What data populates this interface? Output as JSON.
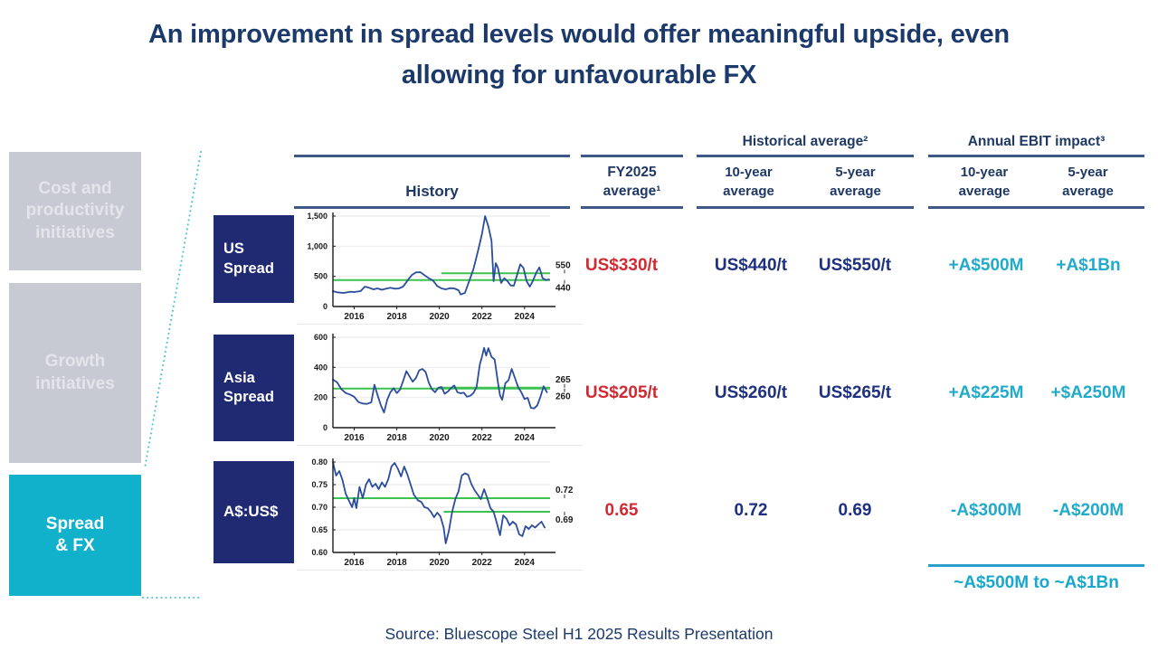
{
  "title_lines": [
    "An improvement in spread levels would offer meaningful upside, even",
    "allowing for unfavourable FX"
  ],
  "sidebar": {
    "items": [
      {
        "label_lines": [
          "Cost and",
          "productivity",
          "initiatives"
        ],
        "active": false
      },
      {
        "label_lines": [
          "Growth",
          "initiatives"
        ],
        "active": false
      },
      {
        "label_lines": [
          "Spread",
          "& FX"
        ],
        "active": true
      }
    ]
  },
  "table": {
    "history_label": "History",
    "fy2025_lines": [
      "FY2025",
      "average¹"
    ],
    "groups": [
      {
        "label": "Historical average²",
        "sub": [
          [
            "10-year",
            "average"
          ],
          [
            "5-year",
            "average"
          ]
        ]
      },
      {
        "label": "Annual EBIT impact³",
        "sub": [
          [
            "10-year",
            "average"
          ],
          [
            "5-year",
            "average"
          ]
        ]
      }
    ],
    "rows": [
      {
        "label_lines": [
          "US",
          "Spread"
        ],
        "fy2025": "US$330/t",
        "y10": "US$440/t",
        "y5": "US$550/t",
        "ebit10": "+A$500M",
        "ebit5": "+A$1Bn"
      },
      {
        "label_lines": [
          "Asia",
          "Spread"
        ],
        "fy2025": "US$205/t",
        "y10": "US$260/t",
        "y5": "US$265/t",
        "ebit10": "+A$225M",
        "ebit5": "+$A250M"
      },
      {
        "label_lines": [
          "A$:US$"
        ],
        "fy2025": "0.65",
        "y10": "0.72",
        "y5": "0.69",
        "ebit10": "-A$300M",
        "ebit5": "-A$200M"
      }
    ],
    "summary": "~A$500M to ~A$1Bn"
  },
  "source": "Source: Bluescope Steel H1 2025 Results Presentation",
  "colors": {
    "title_navy": "#1b3a6b",
    "header_navy": "#1f3864",
    "rule_steel_blue": "#3d5a86",
    "row_label_navy": "#1f2a72",
    "value_navy": "#1e3181",
    "value_red": "#d02a33",
    "value_teal": "#22aacb",
    "summary_teal": "#18a7cd",
    "summary_rule_teal": "#2b9fc9",
    "sidebar_gray": "#c7cad3",
    "sidebar_gray_text": "#e3e5ea",
    "sidebar_teal": "#12b1cb",
    "dotted_connector": "#45c2d8",
    "chart_line": "#2a4d9e",
    "chart_avg_green": "#3cc24e",
    "chart_grid": "#ebebee",
    "chart_axis": "#1a1a1a"
  },
  "chart_data": [
    {
      "type": "line",
      "name": "US Spread history (US$/t)",
      "xlim": [
        2015,
        2025.2
      ],
      "ylim": [
        0,
        1500
      ],
      "yticks": [
        0,
        500,
        1000,
        1500
      ],
      "ytick_labels": [
        "0",
        "500",
        "1,000",
        "1,500"
      ],
      "xticks": [
        2016,
        2018,
        2020,
        2022,
        2024
      ],
      "series": [
        {
          "name": "US spread",
          "points": [
            [
              2015.0,
              255
            ],
            [
              2015.2,
              235
            ],
            [
              2015.5,
              225
            ],
            [
              2015.8,
              245
            ],
            [
              2016.0,
              240
            ],
            [
              2016.3,
              255
            ],
            [
              2016.5,
              330
            ],
            [
              2016.7,
              310
            ],
            [
              2016.9,
              285
            ],
            [
              2017.1,
              300
            ],
            [
              2017.3,
              278
            ],
            [
              2017.5,
              295
            ],
            [
              2017.7,
              310
            ],
            [
              2017.9,
              295
            ],
            [
              2018.1,
              300
            ],
            [
              2018.3,
              330
            ],
            [
              2018.5,
              430
            ],
            [
              2018.7,
              520
            ],
            [
              2018.9,
              565
            ],
            [
              2019.1,
              570
            ],
            [
              2019.3,
              520
            ],
            [
              2019.5,
              470
            ],
            [
              2019.7,
              430
            ],
            [
              2019.9,
              340
            ],
            [
              2020.1,
              300
            ],
            [
              2020.3,
              285
            ],
            [
              2020.5,
              305
            ],
            [
              2020.7,
              300
            ],
            [
              2020.9,
              270
            ],
            [
              2021.0,
              200
            ],
            [
              2021.2,
              225
            ],
            [
              2021.4,
              420
            ],
            [
              2021.6,
              620
            ],
            [
              2021.8,
              900
            ],
            [
              2022.0,
              1200
            ],
            [
              2022.15,
              1500
            ],
            [
              2022.3,
              1330
            ],
            [
              2022.45,
              1090
            ],
            [
              2022.55,
              420
            ],
            [
              2022.65,
              720
            ],
            [
              2022.75,
              640
            ],
            [
              2022.9,
              390
            ],
            [
              2023.05,
              470
            ],
            [
              2023.2,
              420
            ],
            [
              2023.35,
              350
            ],
            [
              2023.5,
              345
            ],
            [
              2023.65,
              520
            ],
            [
              2023.8,
              700
            ],
            [
              2023.95,
              640
            ],
            [
              2024.1,
              420
            ],
            [
              2024.25,
              330
            ],
            [
              2024.4,
              430
            ],
            [
              2024.55,
              560
            ],
            [
              2024.7,
              650
            ],
            [
              2024.85,
              470
            ],
            [
              2025.0,
              440
            ],
            [
              2025.15,
              450
            ]
          ]
        }
      ],
      "avg_lines": [
        {
          "value": 440,
          "from": 2015,
          "to": 2025.2
        },
        {
          "value": 550,
          "from": 2020.1,
          "to": 2025.2
        }
      ],
      "annotations": [
        {
          "value": 550,
          "label": "550",
          "side": "above"
        },
        {
          "value": 440,
          "label": "440",
          "side": "below"
        }
      ]
    },
    {
      "type": "line",
      "name": "Asia Spread history (US$/t)",
      "xlim": [
        2015,
        2025.2
      ],
      "ylim": [
        0,
        600
      ],
      "yticks": [
        0,
        200,
        400,
        600
      ],
      "ytick_labels": [
        "0",
        "200",
        "400",
        "600"
      ],
      "xticks": [
        2016,
        2018,
        2020,
        2022,
        2024
      ],
      "series": [
        {
          "name": "Asia spread",
          "points": [
            [
              2015.0,
              320
            ],
            [
              2015.2,
              300
            ],
            [
              2015.4,
              255
            ],
            [
              2015.6,
              230
            ],
            [
              2015.8,
              220
            ],
            [
              2016.0,
              205
            ],
            [
              2016.2,
              170
            ],
            [
              2016.4,
              160
            ],
            [
              2016.6,
              158
            ],
            [
              2016.8,
              168
            ],
            [
              2016.95,
              285
            ],
            [
              2017.1,
              215
            ],
            [
              2017.25,
              150
            ],
            [
              2017.4,
              100
            ],
            [
              2017.55,
              185
            ],
            [
              2017.7,
              235
            ],
            [
              2017.85,
              262
            ],
            [
              2018.0,
              230
            ],
            [
              2018.15,
              252
            ],
            [
              2018.3,
              310
            ],
            [
              2018.45,
              375
            ],
            [
              2018.6,
              340
            ],
            [
              2018.75,
              305
            ],
            [
              2018.9,
              330
            ],
            [
              2019.05,
              380
            ],
            [
              2019.2,
              390
            ],
            [
              2019.35,
              370
            ],
            [
              2019.5,
              300
            ],
            [
              2019.65,
              255
            ],
            [
              2019.8,
              235
            ],
            [
              2019.95,
              265
            ],
            [
              2020.1,
              270
            ],
            [
              2020.25,
              225
            ],
            [
              2020.4,
              240
            ],
            [
              2020.55,
              262
            ],
            [
              2020.7,
              280
            ],
            [
              2020.85,
              235
            ],
            [
              2021.0,
              228
            ],
            [
              2021.15,
              232
            ],
            [
              2021.3,
              205
            ],
            [
              2021.45,
              212
            ],
            [
              2021.6,
              230
            ],
            [
              2021.75,
              270
            ],
            [
              2021.9,
              420
            ],
            [
              2022.0,
              470
            ],
            [
              2022.1,
              530
            ],
            [
              2022.2,
              478
            ],
            [
              2022.3,
              528
            ],
            [
              2022.45,
              470
            ],
            [
              2022.6,
              452
            ],
            [
              2022.75,
              300
            ],
            [
              2022.85,
              215
            ],
            [
              2022.95,
              185
            ],
            [
              2023.1,
              295
            ],
            [
              2023.25,
              315
            ],
            [
              2023.4,
              390
            ],
            [
              2023.55,
              330
            ],
            [
              2023.7,
              270
            ],
            [
              2023.85,
              235
            ],
            [
              2024.0,
              190
            ],
            [
              2024.15,
              198
            ],
            [
              2024.3,
              132
            ],
            [
              2024.45,
              128
            ],
            [
              2024.6,
              148
            ],
            [
              2024.75,
              205
            ],
            [
              2024.9,
              275
            ],
            [
              2025.05,
              235
            ]
          ]
        }
      ],
      "avg_lines": [
        {
          "value": 260,
          "from": 2015,
          "to": 2025.2
        },
        {
          "value": 265,
          "from": 2020.1,
          "to": 2025.2
        }
      ],
      "annotations": [
        {
          "value": 265,
          "label": "265",
          "side": "above"
        },
        {
          "value": 260,
          "label": "260",
          "side": "below"
        }
      ]
    },
    {
      "type": "line",
      "name": "A$:US$ history",
      "xlim": [
        2015,
        2025.2
      ],
      "ylim": [
        0.6,
        0.8
      ],
      "yticks": [
        0.6,
        0.65,
        0.7,
        0.75,
        0.8
      ],
      "ytick_labels": [
        "0.60",
        "0.65",
        "0.70",
        "0.75",
        "0.80"
      ],
      "xticks": [
        2016,
        2018,
        2020,
        2022,
        2024
      ],
      "series": [
        {
          "name": "A$:US$",
          "points": [
            [
              2015.0,
              0.8
            ],
            [
              2015.15,
              0.77
            ],
            [
              2015.3,
              0.78
            ],
            [
              2015.45,
              0.76
            ],
            [
              2015.6,
              0.73
            ],
            [
              2015.75,
              0.715
            ],
            [
              2015.9,
              0.7
            ],
            [
              2016.0,
              0.72
            ],
            [
              2016.1,
              0.698
            ],
            [
              2016.25,
              0.745
            ],
            [
              2016.4,
              0.72
            ],
            [
              2016.55,
              0.75
            ],
            [
              2016.7,
              0.762
            ],
            [
              2016.85,
              0.745
            ],
            [
              2017.0,
              0.752
            ],
            [
              2017.15,
              0.74
            ],
            [
              2017.3,
              0.755
            ],
            [
              2017.45,
              0.745
            ],
            [
              2017.6,
              0.762
            ],
            [
              2017.75,
              0.79
            ],
            [
              2017.9,
              0.798
            ],
            [
              2018.05,
              0.785
            ],
            [
              2018.2,
              0.768
            ],
            [
              2018.35,
              0.79
            ],
            [
              2018.5,
              0.772
            ],
            [
              2018.65,
              0.75
            ],
            [
              2018.8,
              0.728
            ],
            [
              2019.0,
              0.715
            ],
            [
              2019.15,
              0.712
            ],
            [
              2019.3,
              0.7
            ],
            [
              2019.45,
              0.698
            ],
            [
              2019.6,
              0.69
            ],
            [
              2019.75,
              0.678
            ],
            [
              2019.9,
              0.688
            ],
            [
              2020.05,
              0.68
            ],
            [
              2020.2,
              0.655
            ],
            [
              2020.3,
              0.62
            ],
            [
              2020.45,
              0.648
            ],
            [
              2020.6,
              0.69
            ],
            [
              2020.75,
              0.718
            ],
            [
              2020.9,
              0.735
            ],
            [
              2021.05,
              0.77
            ],
            [
              2021.2,
              0.775
            ],
            [
              2021.35,
              0.772
            ],
            [
              2021.5,
              0.752
            ],
            [
              2021.65,
              0.738
            ],
            [
              2021.8,
              0.728
            ],
            [
              2021.95,
              0.718
            ],
            [
              2022.1,
              0.74
            ],
            [
              2022.25,
              0.72
            ],
            [
              2022.4,
              0.698
            ],
            [
              2022.55,
              0.69
            ],
            [
              2022.7,
              0.665
            ],
            [
              2022.85,
              0.638
            ],
            [
              2023.0,
              0.682
            ],
            [
              2023.15,
              0.675
            ],
            [
              2023.3,
              0.66
            ],
            [
              2023.45,
              0.668
            ],
            [
              2023.6,
              0.662
            ],
            [
              2023.75,
              0.64
            ],
            [
              2023.9,
              0.636
            ],
            [
              2024.05,
              0.658
            ],
            [
              2024.2,
              0.652
            ],
            [
              2024.35,
              0.66
            ],
            [
              2024.5,
              0.655
            ],
            [
              2024.65,
              0.662
            ],
            [
              2024.8,
              0.668
            ],
            [
              2024.95,
              0.655
            ]
          ]
        }
      ],
      "avg_lines": [
        {
          "value": 0.72,
          "from": 2015,
          "to": 2025.2
        },
        {
          "value": 0.69,
          "from": 2020.2,
          "to": 2025.2
        }
      ],
      "annotations": [
        {
          "value": 0.72,
          "label": "0.72",
          "side": "above"
        },
        {
          "value": 0.69,
          "label": "0.69",
          "side": "below"
        }
      ]
    }
  ]
}
